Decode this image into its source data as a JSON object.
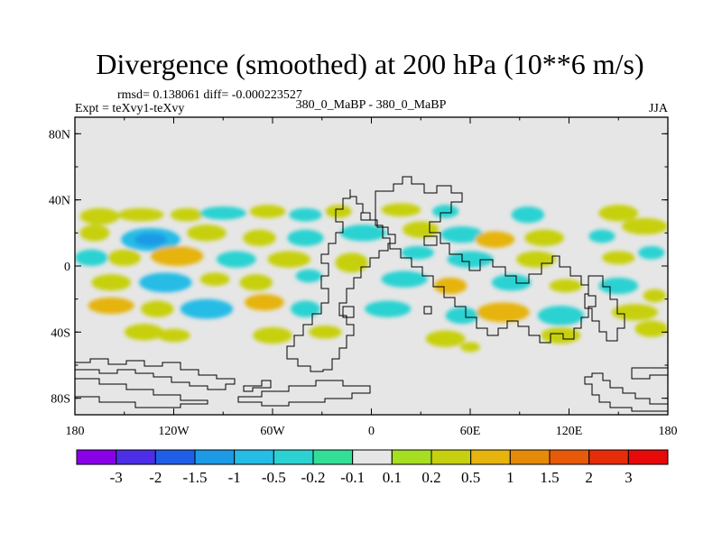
{
  "chart_data": {
    "type": "heatmap",
    "title": "Divergence (smoothed) at 200 hPa (10**6 m/s)",
    "stats_line": "rmsd= 0.138061 diff= -0.000223527",
    "experiment_label": "Expt = teXvy1-teXvy",
    "center_label": "380_0_MaBP - 380_0_MaBP",
    "season_label": "JJA",
    "x_range": [
      -180,
      180
    ],
    "y_range": [
      -90,
      90
    ],
    "x_ticks": [
      {
        "value": -180,
        "label": "180"
      },
      {
        "value": -120,
        "label": "120W"
      },
      {
        "value": -60,
        "label": "60W"
      },
      {
        "value": 0,
        "label": "0"
      },
      {
        "value": 60,
        "label": "60E"
      },
      {
        "value": 120,
        "label": "120E"
      },
      {
        "value": 180,
        "label": "180"
      }
    ],
    "y_ticks": [
      {
        "value": 80,
        "label": "80N"
      },
      {
        "value": 40,
        "label": "40N"
      },
      {
        "value": 0,
        "label": "0"
      },
      {
        "value": -40,
        "label": "40S"
      },
      {
        "value": -80,
        "label": "80S"
      }
    ],
    "colorbar": {
      "labels": [
        "-3",
        "-2",
        "-1.5",
        "-1",
        "-0.5",
        "-0.2",
        "-0.1",
        "0.1",
        "0.2",
        "0.5",
        "1",
        "1.5",
        "2",
        "3"
      ],
      "colors": [
        "#8a00e6",
        "#4b2ee6",
        "#1f5fe6",
        "#1c9ae6",
        "#25bce6",
        "#2cd2d2",
        "#33de96",
        "#e6e6e6",
        "#a6de21",
        "#c7d010",
        "#e6b40d",
        "#e68a0a",
        "#e65a0a",
        "#e62d0a",
        "#e60a0a"
      ]
    },
    "field_blobs": [
      {
        "lon": -165,
        "lat": 30,
        "rx": 12,
        "ry": 5,
        "value": 0.3
      },
      {
        "lon": -140,
        "lat": 31,
        "rx": 14,
        "ry": 4,
        "value": 0.3
      },
      {
        "lon": -112,
        "lat": 31,
        "rx": 10,
        "ry": 4,
        "value": 0.2
      },
      {
        "lon": -90,
        "lat": 32,
        "rx": 14,
        "ry": 4,
        "value": -0.3
      },
      {
        "lon": -63,
        "lat": 33,
        "rx": 11,
        "ry": 4,
        "value": 0.3
      },
      {
        "lon": -40,
        "lat": 31,
        "rx": 10,
        "ry": 4,
        "value": -0.3
      },
      {
        "lon": -20,
        "lat": 33,
        "rx": 8,
        "ry": 4,
        "value": 0.3
      },
      {
        "lon": 18,
        "lat": 34,
        "rx": 12,
        "ry": 4,
        "value": 0.3
      },
      {
        "lon": 45,
        "lat": 33,
        "rx": 8,
        "ry": 4,
        "value": -0.3
      },
      {
        "lon": 95,
        "lat": 31,
        "rx": 10,
        "ry": 5,
        "value": -0.4
      },
      {
        "lon": 150,
        "lat": 32,
        "rx": 12,
        "ry": 5,
        "value": 0.4
      },
      {
        "lon": -168,
        "lat": 20,
        "rx": 9,
        "ry": 5,
        "value": 0.4
      },
      {
        "lon": -134,
        "lat": 16,
        "rx": 18,
        "ry": 7,
        "value": -0.9
      },
      {
        "lon": -100,
        "lat": 20,
        "rx": 12,
        "ry": 5,
        "value": 0.4
      },
      {
        "lon": -68,
        "lat": 17,
        "rx": 10,
        "ry": 5,
        "value": 0.3
      },
      {
        "lon": -40,
        "lat": 17,
        "rx": 11,
        "ry": 5,
        "value": -0.3
      },
      {
        "lon": -5,
        "lat": 20,
        "rx": 14,
        "ry": 5,
        "value": -0.4
      },
      {
        "lon": 30,
        "lat": 22,
        "rx": 11,
        "ry": 5,
        "value": 0.4
      },
      {
        "lon": 55,
        "lat": 19,
        "rx": 13,
        "ry": 5,
        "value": -0.4
      },
      {
        "lon": 75,
        "lat": 16,
        "rx": 12,
        "ry": 5,
        "value": 0.6
      },
      {
        "lon": 105,
        "lat": 17,
        "rx": 12,
        "ry": 5,
        "value": 0.4
      },
      {
        "lon": 140,
        "lat": 18,
        "rx": 8,
        "ry": 4,
        "value": -0.3
      },
      {
        "lon": 166,
        "lat": 24,
        "rx": 14,
        "ry": 5,
        "value": 0.4
      },
      {
        "lon": -170,
        "lat": 5,
        "rx": 10,
        "ry": 5,
        "value": -0.4
      },
      {
        "lon": -150,
        "lat": 5,
        "rx": 10,
        "ry": 5,
        "value": 0.3
      },
      {
        "lon": -118,
        "lat": 6,
        "rx": 16,
        "ry": 6,
        "value": 0.5
      },
      {
        "lon": -82,
        "lat": 4,
        "rx": 12,
        "ry": 5,
        "value": -0.4
      },
      {
        "lon": -50,
        "lat": 4,
        "rx": 13,
        "ry": 5,
        "value": 0.3
      },
      {
        "lon": -12,
        "lat": 2,
        "rx": 10,
        "ry": 6,
        "value": 0.3
      },
      {
        "lon": 28,
        "lat": 8,
        "rx": 10,
        "ry": 4,
        "value": -0.3
      },
      {
        "lon": 60,
        "lat": 4,
        "rx": 14,
        "ry": 5,
        "value": -0.3
      },
      {
        "lon": 100,
        "lat": 4,
        "rx": 12,
        "ry": 5,
        "value": 0.3
      },
      {
        "lon": 150,
        "lat": 5,
        "rx": 10,
        "ry": 4,
        "value": 0.3
      },
      {
        "lon": 170,
        "lat": 8,
        "rx": 8,
        "ry": 4,
        "value": -0.3
      },
      {
        "lon": -158,
        "lat": -10,
        "rx": 12,
        "ry": 5,
        "value": 0.3
      },
      {
        "lon": -125,
        "lat": -10,
        "rx": 16,
        "ry": 6,
        "value": -0.6
      },
      {
        "lon": -95,
        "lat": -8,
        "rx": 9,
        "ry": 4,
        "value": 0.3
      },
      {
        "lon": -70,
        "lat": -10,
        "rx": 10,
        "ry": 5,
        "value": 0.3
      },
      {
        "lon": -38,
        "lat": -6,
        "rx": 8,
        "ry": 4,
        "value": -0.3
      },
      {
        "lon": 20,
        "lat": -8,
        "rx": 14,
        "ry": 5,
        "value": -0.3
      },
      {
        "lon": 48,
        "lat": -12,
        "rx": 10,
        "ry": 5,
        "value": 0.6
      },
      {
        "lon": 85,
        "lat": -10,
        "rx": 12,
        "ry": 5,
        "value": -0.4
      },
      {
        "lon": 118,
        "lat": -12,
        "rx": 10,
        "ry": 4,
        "value": 0.3
      },
      {
        "lon": 150,
        "lat": -12,
        "rx": 12,
        "ry": 5,
        "value": -0.3
      },
      {
        "lon": 172,
        "lat": -18,
        "rx": 7,
        "ry": 4,
        "value": 0.3
      },
      {
        "lon": -158,
        "lat": -24,
        "rx": 14,
        "ry": 5,
        "value": 0.6
      },
      {
        "lon": -130,
        "lat": -26,
        "rx": 10,
        "ry": 5,
        "value": 0.3
      },
      {
        "lon": -100,
        "lat": -26,
        "rx": 16,
        "ry": 6,
        "value": -0.6
      },
      {
        "lon": -65,
        "lat": -22,
        "rx": 12,
        "ry": 5,
        "value": 0.6
      },
      {
        "lon": -40,
        "lat": -26,
        "rx": 9,
        "ry": 5,
        "value": -0.4
      },
      {
        "lon": 10,
        "lat": -26,
        "rx": 14,
        "ry": 5,
        "value": -0.4
      },
      {
        "lon": 55,
        "lat": -30,
        "rx": 10,
        "ry": 5,
        "value": -0.4
      },
      {
        "lon": 80,
        "lat": -28,
        "rx": 16,
        "ry": 6,
        "value": 0.6
      },
      {
        "lon": 115,
        "lat": -30,
        "rx": 14,
        "ry": 6,
        "value": -0.4
      },
      {
        "lon": 160,
        "lat": -28,
        "rx": 14,
        "ry": 5,
        "value": 0.4
      },
      {
        "lon": -138,
        "lat": -40,
        "rx": 12,
        "ry": 5,
        "value": 0.3
      },
      {
        "lon": -120,
        "lat": -42,
        "rx": 10,
        "ry": 4,
        "value": 0.3
      },
      {
        "lon": -60,
        "lat": -42,
        "rx": 12,
        "ry": 5,
        "value": 0.3
      },
      {
        "lon": -28,
        "lat": -40,
        "rx": 10,
        "ry": 4,
        "value": 0.3
      },
      {
        "lon": 45,
        "lat": -44,
        "rx": 12,
        "ry": 5,
        "value": 0.3
      },
      {
        "lon": 115,
        "lat": -42,
        "rx": 12,
        "ry": 5,
        "value": 0.4
      },
      {
        "lon": 170,
        "lat": -38,
        "rx": 10,
        "ry": 5,
        "value": 0.3
      },
      {
        "lon": 60,
        "lat": -49,
        "rx": 6,
        "ry": 3,
        "value": 0.3
      }
    ]
  }
}
